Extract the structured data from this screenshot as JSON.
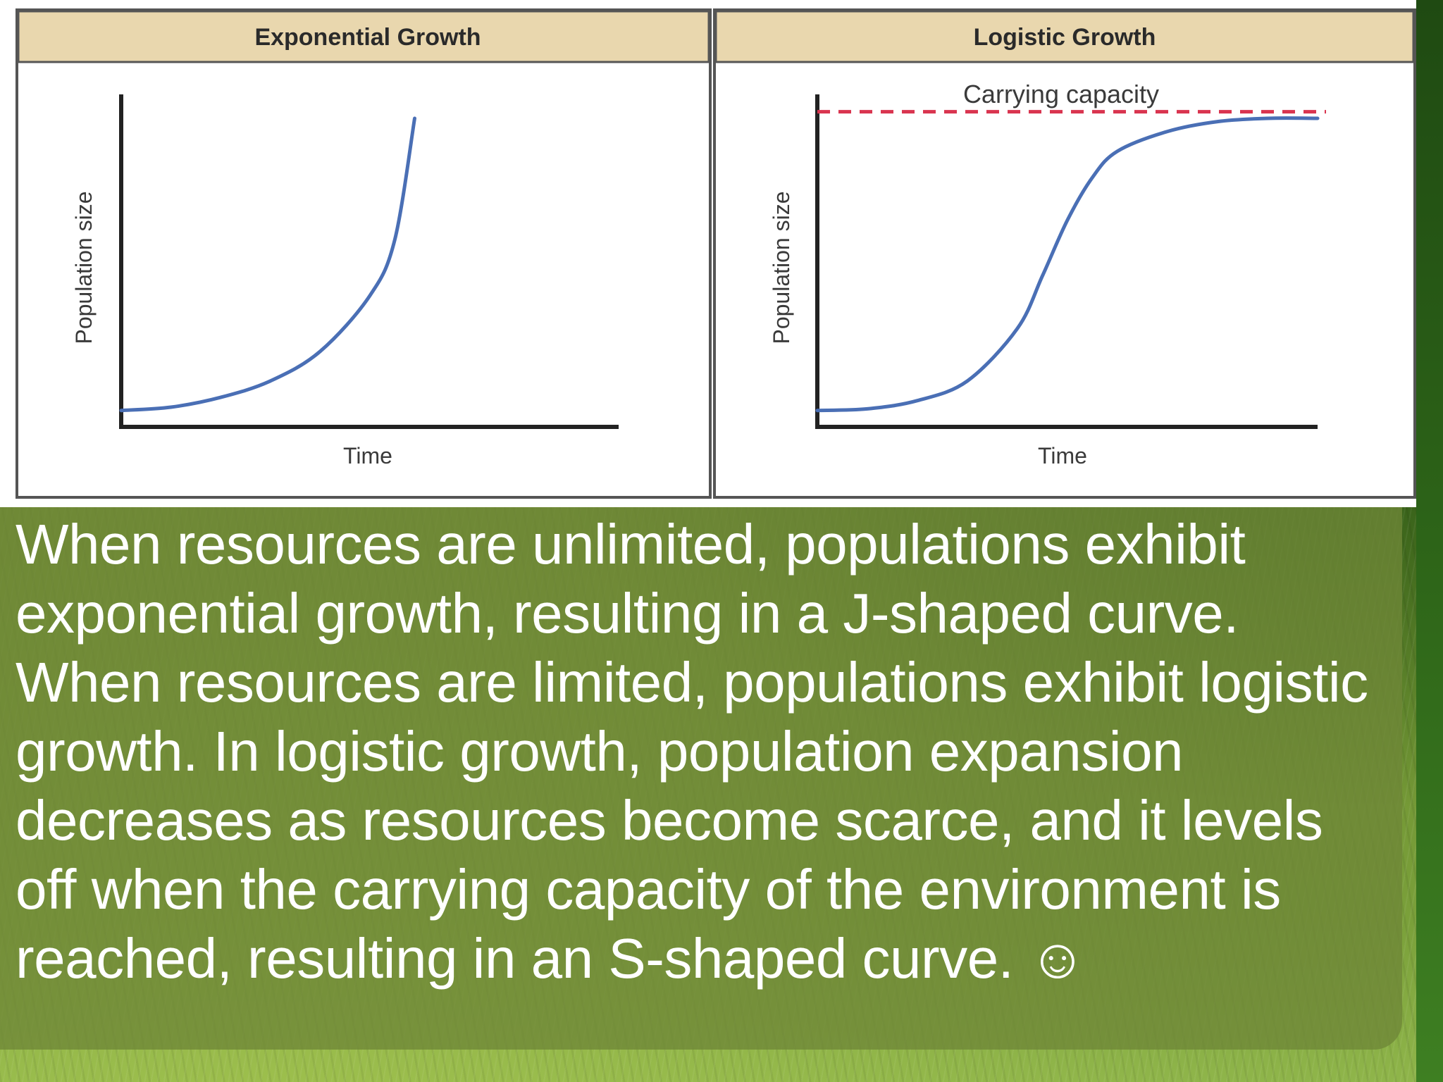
{
  "slide": {
    "body_text": "When resources are unlimited, populations exhibit exponential growth, resulting in a J-shaped curve. When resources are limited, populations exhibit logistic growth. In logistic growth, population expansion decreases as resources become scarce, and it levels off when the carrying capacity of the environment is reached, resulting in an S-shaped curve. ☺"
  },
  "colors": {
    "curve": "#4a6fb5",
    "carrying_capacity_line": "#d9344f",
    "header_bg": "#e9d7ae",
    "axis": "#222222"
  },
  "chart_data": [
    {
      "type": "line",
      "title": "Exponential Growth",
      "xlabel": "Time",
      "ylabel": "Population size",
      "xlim": [
        0,
        10
      ],
      "ylim": [
        0,
        10
      ],
      "grid": false,
      "series": [
        {
          "shape": "J-shaped curve",
          "x": [
            0,
            1,
            2,
            3,
            4,
            5,
            5.5,
            5.9
          ],
          "y": [
            0.5,
            0.6,
            0.9,
            1.4,
            2.3,
            4.0,
            5.7,
            9.4
          ]
        }
      ]
    },
    {
      "type": "line",
      "title": "Logistic Growth",
      "xlabel": "Time",
      "ylabel": "Population size",
      "xlim": [
        0,
        10
      ],
      "ylim": [
        0,
        10
      ],
      "grid": false,
      "annotations": [
        {
          "text": "Carrying capacity",
          "y": 9.6,
          "style": "dashed"
        }
      ],
      "series": [
        {
          "shape": "S-shaped curve",
          "x": [
            0,
            1,
            2,
            3,
            4,
            4.5,
            5,
            5.5,
            6,
            7,
            8,
            9,
            10
          ],
          "y": [
            0.5,
            0.55,
            0.8,
            1.4,
            3.0,
            4.6,
            6.3,
            7.6,
            8.4,
            9.0,
            9.3,
            9.4,
            9.4
          ]
        }
      ]
    }
  ]
}
